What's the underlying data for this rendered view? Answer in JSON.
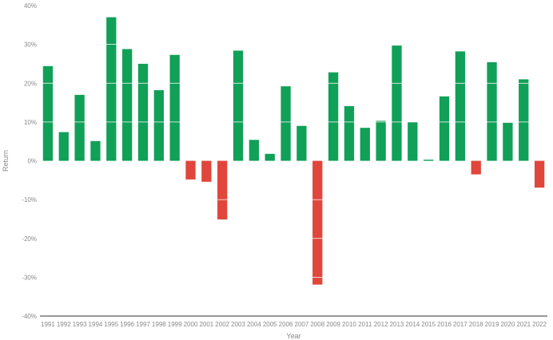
{
  "chart_data": {
    "type": "bar",
    "xlabel": "Year",
    "ylabel": "Return",
    "ylim": [
      -40,
      40
    ],
    "yticks": [
      40,
      30,
      20,
      10,
      0,
      -10,
      -20,
      -30,
      -40
    ],
    "ytick_format": "%",
    "grid": false,
    "legend": "none",
    "colors": {
      "positive": "#11a058",
      "negative": "#e0463b",
      "axis": "#333333",
      "text": "#8a8a8a"
    },
    "categories": [
      "1991",
      "1992",
      "1993",
      "1994",
      "1995",
      "1996",
      "1997",
      "1998",
      "1999",
      "2000",
      "2001",
      "2002",
      "2003",
      "2004",
      "2005",
      "2006",
      "2007",
      "2008",
      "2009",
      "2010",
      "2011",
      "2012",
      "2013",
      "2014",
      "2015",
      "2016",
      "2017",
      "2018",
      "2019",
      "2020",
      "2021",
      "2022"
    ],
    "values": [
      24.4,
      7.4,
      17.0,
      5.1,
      37.0,
      28.8,
      25.0,
      18.2,
      27.3,
      -4.8,
      -5.4,
      -15.1,
      28.4,
      5.4,
      1.8,
      19.2,
      9.0,
      -31.9,
      22.8,
      14.1,
      8.5,
      10.3,
      29.7,
      10.0,
      0.3,
      16.6,
      28.2,
      -3.5,
      25.4,
      9.8,
      21.0,
      -6.9
    ]
  }
}
